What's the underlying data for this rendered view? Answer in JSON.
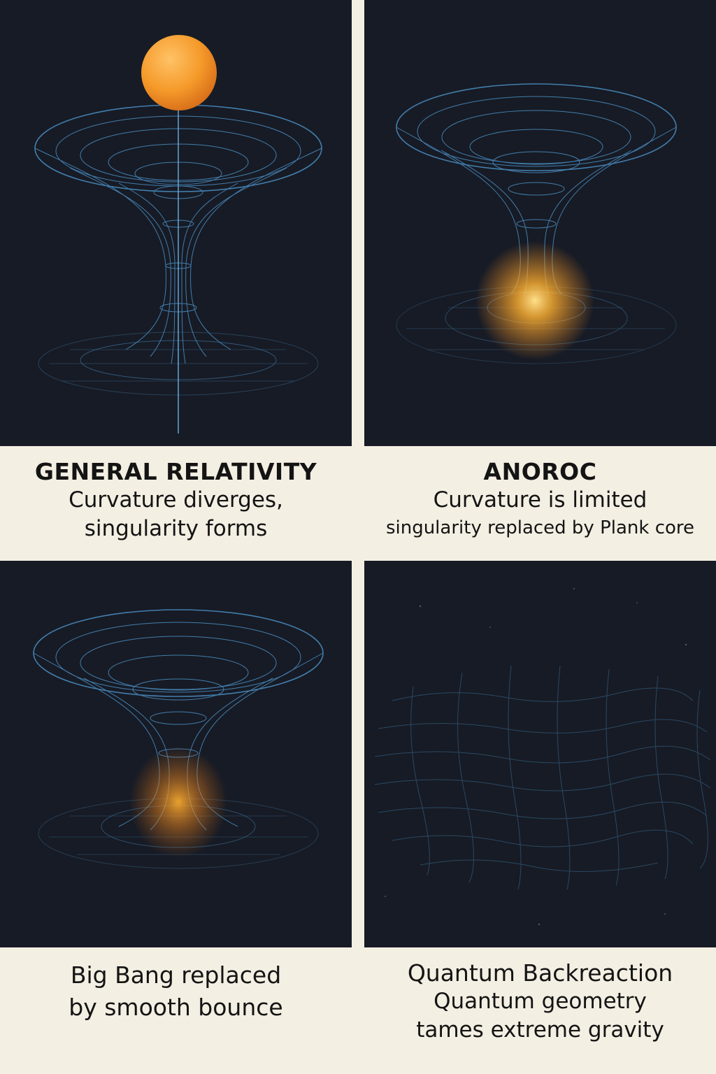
{
  "panels": [
    {
      "title": "GENERAL RELATIVITY",
      "lines": [
        "Curvature diverges,",
        "singularity forms"
      ]
    },
    {
      "title": "ANOROC",
      "lines": [
        "Curvature is limited",
        "singularity replaced by Plank core"
      ]
    },
    {
      "title": "",
      "lines": [
        "Big Bang replaced",
        "by smooth bounce"
      ]
    },
    {
      "title": "Quantum Backreaction",
      "lines": [
        "Quantum geometry",
        "tames extreme gravity"
      ]
    }
  ],
  "colors": {
    "background": "#f4efe3",
    "panel": "#171b25",
    "grid": "#4a8fc4",
    "glow": "#ffb030",
    "sphere": "#f08a20"
  }
}
